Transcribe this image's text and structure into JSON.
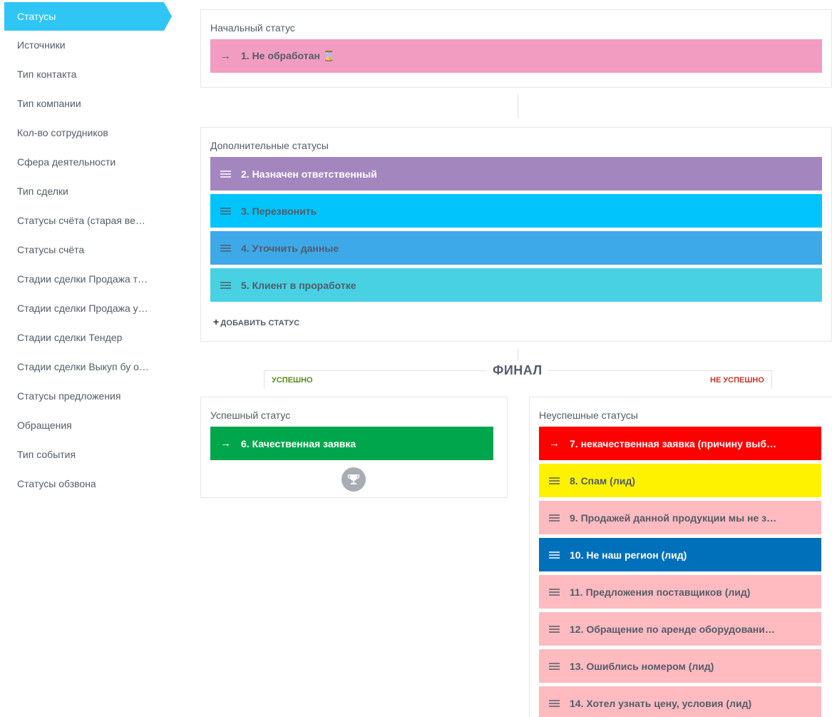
{
  "sidebar": {
    "items": [
      {
        "label": "Статусы",
        "active": true
      },
      {
        "label": "Источники"
      },
      {
        "label": "Тип контакта"
      },
      {
        "label": "Тип компании"
      },
      {
        "label": "Кол-во сотрудников"
      },
      {
        "label": "Сфера деятельности"
      },
      {
        "label": "Тип сделки"
      },
      {
        "label": "Статусы счёта (старая ве…"
      },
      {
        "label": "Статусы счёта"
      },
      {
        "label": "Стадии сделки Продажа т…"
      },
      {
        "label": "Стадии сделки Продажа у…"
      },
      {
        "label": "Стадии сделки Тендер"
      },
      {
        "label": "Стадии сделки Выкуп бу о…"
      },
      {
        "label": "Статусы предложения"
      },
      {
        "label": "Обращения"
      },
      {
        "label": "Тип события"
      },
      {
        "label": "Статусы обзвона"
      }
    ]
  },
  "initial": {
    "title": "Начальный статус",
    "status": {
      "label": "1. Не обработан ⌛",
      "color": "#f29cc1",
      "text_color": "#535c69"
    }
  },
  "additional": {
    "title": "Дополнительные статусы",
    "statuses": [
      {
        "label": "2. Назначен ответственный",
        "color": "#a386be",
        "text_color": "#ffffff"
      },
      {
        "label": "3. Перезвонить",
        "color": "#00c4fb",
        "text_color": "#535c69"
      },
      {
        "label": "4. Уточнить данные",
        "color": "#3da9e9",
        "text_color": "#535c69"
      },
      {
        "label": "5. Клиент в проработке",
        "color": "#47d1e2",
        "text_color": "#535c69"
      }
    ],
    "add_label": "ДОБАВИТЬ СТАТУС"
  },
  "final": {
    "title": "ФИНАЛ",
    "success_tag": "УСПЕШНО",
    "fail_tag": "НЕ УСПЕШНО"
  },
  "success": {
    "title": "Успешный статус",
    "status": {
      "label": "6. Качественная заявка",
      "color": "#00a64c",
      "text_color": "#ffffff"
    }
  },
  "failure": {
    "title": "Неуспешные статусы",
    "statuses": [
      {
        "label": "7. некачественная заявка (причину выб…",
        "color": "#ff0000",
        "text_color": "#ffffff",
        "lead": "arrow"
      },
      {
        "label": "8. Спам (лид)",
        "color": "#fff200",
        "text_color": "#535c69",
        "lead": "drag"
      },
      {
        "label": "9. Продажей данной продукции мы не з…",
        "color": "#ffbbc0",
        "text_color": "#535c69",
        "lead": "drag"
      },
      {
        "label": "10. Не наш регион (лид)",
        "color": "#0070ba",
        "text_color": "#ffffff",
        "lead": "drag"
      },
      {
        "label": "11. Предложения поставщиков (лид)",
        "color": "#ffbbc0",
        "text_color": "#535c69",
        "lead": "drag"
      },
      {
        "label": "12. Обращение по аренде оборудовани…",
        "color": "#ffbbc0",
        "text_color": "#535c69",
        "lead": "drag"
      },
      {
        "label": "13. Ошиблись номером (лид)",
        "color": "#ffbbc0",
        "text_color": "#535c69",
        "lead": "drag"
      },
      {
        "label": "14. Хотел узнать цену, условия (лид)",
        "color": "#ffbbc0",
        "text_color": "#535c69",
        "lead": "drag"
      }
    ]
  },
  "icons": {
    "arrow": "right-arrow-icon",
    "drag": "drag-handle-icon",
    "trophy": "trophy-icon",
    "plus": "plus-icon"
  }
}
